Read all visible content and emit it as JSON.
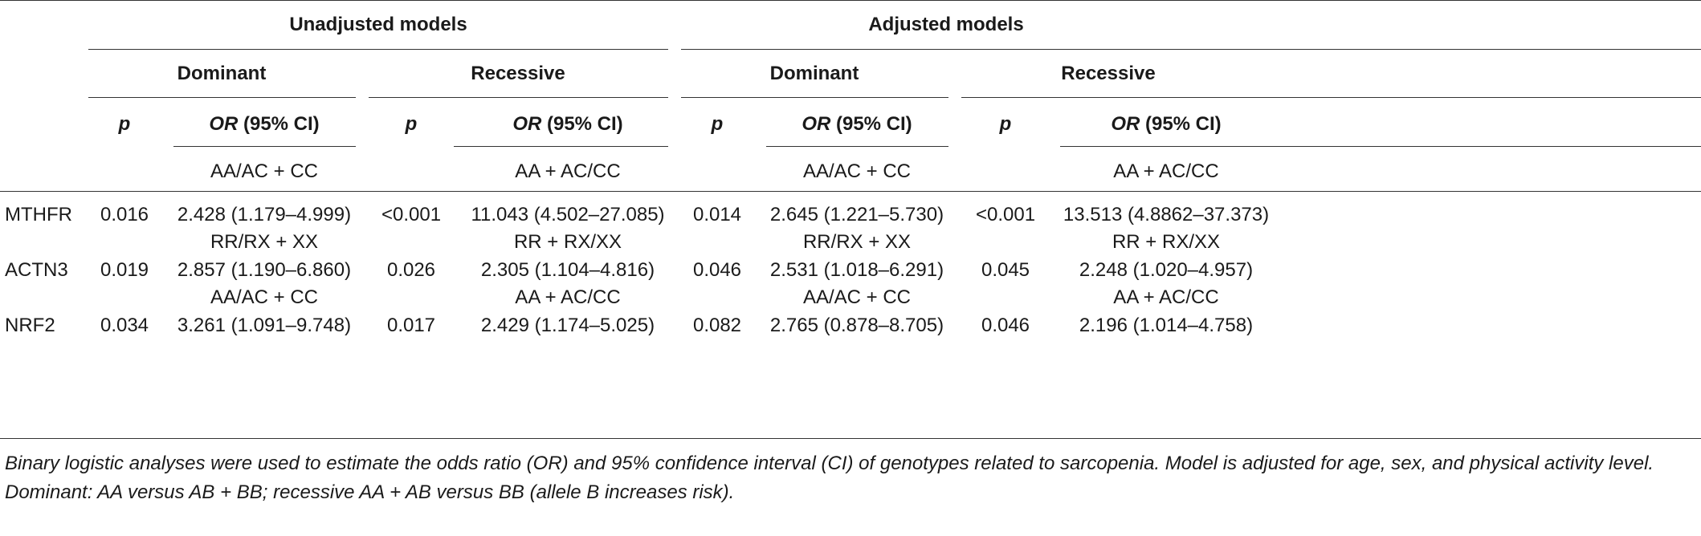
{
  "header": {
    "unadjusted": "Unadjusted models",
    "adjusted": "Adjusted models",
    "dominant": "Dominant",
    "recessive": "Recessive",
    "p": "p",
    "or_italic": "OR",
    "or_rest": " (95% CI)"
  },
  "genotype_rows": [
    {
      "dom": "AA/AC + CC",
      "rec": "AA + AC/CC"
    },
    {
      "dom": "RR/RX + XX",
      "rec": "RR + RX/XX"
    },
    {
      "dom": "AA/AC + CC",
      "rec": "AA + AC/CC"
    }
  ],
  "rows": [
    {
      "gene": "MTHFR",
      "u_dom_p": "0.016",
      "u_dom_or": "2.428 (1.179–4.999)",
      "u_rec_p": "<0.001",
      "u_rec_or": "11.043 (4.502–27.085)",
      "a_dom_p": "0.014",
      "a_dom_or": "2.645 (1.221–5.730)",
      "a_rec_p": "<0.001",
      "a_rec_or": "13.513 (4.8862–37.373)"
    },
    {
      "gene": "ACTN3",
      "u_dom_p": "0.019",
      "u_dom_or": "2.857 (1.190–6.860)",
      "u_rec_p": "0.026",
      "u_rec_or": "2.305 (1.104–4.816)",
      "a_dom_p": "0.046",
      "a_dom_or": "2.531 (1.018–6.291)",
      "a_rec_p": "0.045",
      "a_rec_or": "2.248 (1.020–4.957)"
    },
    {
      "gene": "NRF2",
      "u_dom_p": "0.034",
      "u_dom_or": "3.261 (1.091–9.748)",
      "u_rec_p": "0.017",
      "u_rec_or": "2.429 (1.174–5.025)",
      "a_dom_p": "0.082",
      "a_dom_or": "2.765 (0.878–8.705)",
      "a_rec_p": "0.046",
      "a_rec_or": "2.196 (1.014–4.758)"
    }
  ],
  "footnote": "Binary logistic analyses were used to estimate the odds ratio (OR) and 95% confidence interval (CI) of genotypes related to sarcopenia. Model is adjusted for age, sex, and physical activity level. Dominant: AA versus AB + BB; recessive AA + AB versus BB (allele B increases risk)."
}
